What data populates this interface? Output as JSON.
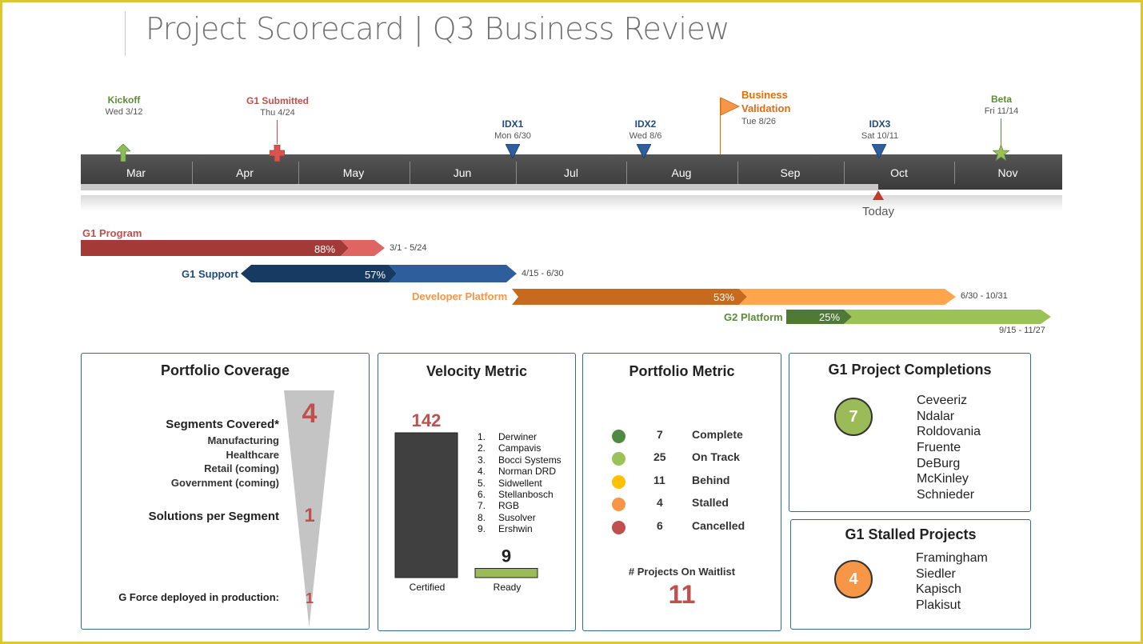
{
  "header": {
    "title": "Project Scorecard  |  Q3 Business Review"
  },
  "timeline": {
    "months": [
      "Mar",
      "Apr",
      "May",
      "Jun",
      "Jul",
      "Aug",
      "Sep",
      "Oct",
      "Nov"
    ],
    "today_label": "Today",
    "milestones": [
      {
        "name": "Kickoff",
        "date": "Wed 3/12",
        "color": "#5b8c3a",
        "marker": "up-arrow-icon"
      },
      {
        "name": "G1 Submitted",
        "date": "Thu 4/24",
        "color": "#c0504d",
        "marker": "cross-icon"
      },
      {
        "name": "IDX1",
        "date": "Mon 6/30",
        "color": "#1f497d",
        "marker": "triangle-down-icon"
      },
      {
        "name": "IDX2",
        "date": "Wed 8/6",
        "color": "#1f497d",
        "marker": "triangle-down-icon"
      },
      {
        "name_line1": "Business",
        "name_line2": "Validation",
        "date": "Tue 8/26",
        "color": "#e36c09",
        "marker": "flag-icon"
      },
      {
        "name": "IDX3",
        "date": "Sat 10/11",
        "color": "#1f497d",
        "marker": "triangle-down-icon"
      },
      {
        "name": "Beta",
        "date": "Fri 11/14",
        "color": "#5b8c3a",
        "marker": "star-icon"
      }
    ]
  },
  "tasks": [
    {
      "label": "G1 Program",
      "percent": "88%",
      "range": "3/1 - 5/24",
      "color": "#c0504d"
    },
    {
      "label": "G1 Support",
      "percent": "57%",
      "range": "4/15 - 6/30",
      "color": "#1f497d"
    },
    {
      "label": "Developer Platform",
      "percent": "53%",
      "range": "6/30 - 10/31",
      "color": "#f79646"
    },
    {
      "label": "G2 Platform",
      "percent": "25%",
      "range": "9/15 - 11/27",
      "color": "#5b8c3a"
    }
  ],
  "portfolio_coverage": {
    "title": "Portfolio Coverage",
    "segments_label": "Segments Covered*",
    "segments": [
      "Manufacturing",
      "Healthcare",
      "Retail (coming)",
      "Government (coming)"
    ],
    "segments_count": "4",
    "solutions_label": "Solutions per Segment",
    "solutions_count": "1",
    "deployed_label": "G Force deployed in production:",
    "deployed_count": "1"
  },
  "velocity": {
    "title": "Velocity Metric",
    "bars": [
      {
        "label": "Certified",
        "value": 142,
        "value_text": "142",
        "color": "#404040"
      },
      {
        "label": "Ready",
        "value": 9,
        "value_text": "9",
        "color": "#9bbb59"
      }
    ],
    "list": [
      "Derwiner",
      "Campavis",
      "Bocci Systems",
      "Norman DRD",
      "Sidwellent",
      "Stellanbosch",
      "RGB",
      "Susolver",
      "Ershwin"
    ]
  },
  "portfolio_metric": {
    "title": "Portfolio Metric",
    "rows": [
      {
        "count": "7",
        "label": "Complete",
        "color": "#4f8a43"
      },
      {
        "count": "25",
        "label": "On Track",
        "color": "#9bc256"
      },
      {
        "count": "11",
        "label": "Behind",
        "color": "#ffc000"
      },
      {
        "count": "4",
        "label": "Stalled",
        "color": "#f79646"
      },
      {
        "count": "6",
        "label": "Cancelled",
        "color": "#c0504d"
      }
    ],
    "waitlist_label": "# Projects On Waitlist",
    "waitlist_count": "11"
  },
  "completions": {
    "title": "G1 Project Completions",
    "count": "7",
    "color": "#9bbb59",
    "names": [
      "Ceveeriz",
      "Ndalar",
      "Roldovania",
      "Fruente",
      "DeBurg",
      "McKinley",
      "Schnieder"
    ]
  },
  "stalled": {
    "title": "G1 Stalled Projects",
    "count": "4",
    "color": "#f79646",
    "names": [
      "Framingham",
      "Siedler",
      "Kapisch",
      "Plakisut"
    ]
  }
}
